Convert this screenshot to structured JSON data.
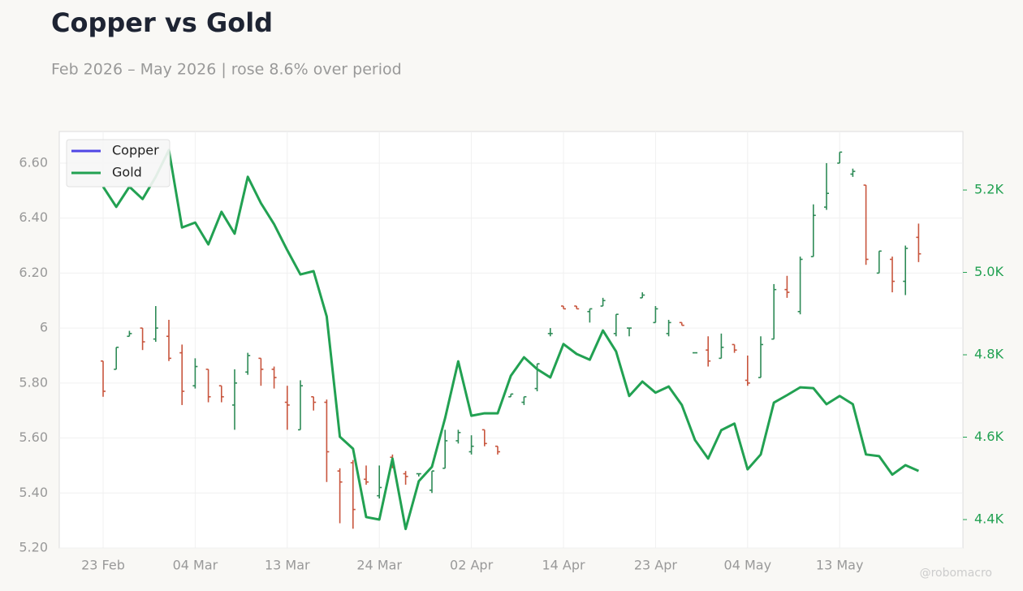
{
  "chart_data": {
    "type": "ohlc",
    "title": "Copper vs Gold",
    "subtitle": "Feb 2026 – May 2026 | rose 8.6% over period",
    "watermark": "@robomacro",
    "categories": [
      "23 Feb",
      null,
      null,
      null,
      null,
      null,
      null,
      "04 Mar",
      null,
      null,
      null,
      null,
      null,
      null,
      "13 Mar",
      null,
      null,
      null,
      null,
      null,
      null,
      "24 Mar",
      null,
      null,
      null,
      null,
      null,
      null,
      "02 Apr",
      null,
      null,
      null,
      null,
      null,
      null,
      "14 Apr",
      null,
      null,
      null,
      null,
      null,
      null,
      "23 Apr",
      null,
      null,
      null,
      null,
      null,
      null,
      "04 May",
      null,
      null,
      null,
      null,
      null,
      null,
      "13 May",
      null,
      null,
      null,
      null,
      null,
      null
    ],
    "ylim": [
      5.2,
      6.715
    ],
    "yticks": [
      {
        "value": 5.2,
        "label": "5.20"
      },
      {
        "value": 5.4,
        "label": "5.40"
      },
      {
        "value": 5.6,
        "label": "5.60"
      },
      {
        "value": 5.8,
        "label": "5.80"
      },
      6,
      {
        "value": 6.2,
        "label": "6.20"
      },
      {
        "value": 6.4,
        "label": "6.40"
      },
      {
        "value": 6.6,
        "label": "6.60"
      }
    ],
    "y2lim": [
      4331,
      5342
    ],
    "y2ticks": [
      {
        "value": 4400,
        "label": "4.4K"
      },
      {
        "value": 4600,
        "label": "4.6K"
      },
      {
        "value": 4800,
        "label": "4.8K"
      },
      {
        "value": 5000,
        "label": "5.0K"
      },
      {
        "value": 5200,
        "label": "5.2K"
      }
    ],
    "grid": true,
    "legend": "upper left",
    "series": [
      {
        "name": "Copper",
        "type": "ohlc",
        "color": "#4f46e5",
        "up_color": "#2e8b57",
        "down_color": "#c8553d",
        "open": [
          5.88,
          5.85,
          5.97,
          6.0,
          5.96,
          5.97,
          5.91,
          5.79,
          5.85,
          5.79,
          5.72,
          5.84,
          5.89,
          5.85,
          5.73,
          5.63,
          5.75,
          5.73,
          5.48,
          5.51,
          5.45,
          5.39,
          5.53,
          5.47,
          5.47,
          5.41,
          5.49,
          5.59,
          5.55,
          5.63,
          5.57,
          5.75,
          5.73,
          5.78,
          5.98,
          6.08,
          6.08,
          6.06,
          6.08,
          5.98,
          6.0,
          6.11,
          6.02,
          5.98,
          6.02,
          5.91,
          5.92,
          5.89,
          5.94,
          5.81,
          5.82,
          5.96,
          6.14,
          6.06,
          6.26,
          6.44,
          6.6,
          6.56,
          6.52,
          6.2,
          6.25,
          6.17,
          6.33
        ],
        "high": [
          5.88,
          5.93,
          5.99,
          6.0,
          6.08,
          6.03,
          5.94,
          5.89,
          5.85,
          5.79,
          5.85,
          5.91,
          5.89,
          5.86,
          5.79,
          5.81,
          5.75,
          5.74,
          5.49,
          5.52,
          5.5,
          5.5,
          5.54,
          5.48,
          5.47,
          5.48,
          5.63,
          5.63,
          5.61,
          5.63,
          5.57,
          5.76,
          5.75,
          5.87,
          6.0,
          6.08,
          6.08,
          6.07,
          6.11,
          6.05,
          6.0,
          6.13,
          6.08,
          6.03,
          6.02,
          5.91,
          5.97,
          5.98,
          5.94,
          5.9,
          5.97,
          6.16,
          6.19,
          6.26,
          6.45,
          6.6,
          6.64,
          6.58,
          6.52,
          6.28,
          6.26,
          6.3,
          6.38
        ],
        "low": [
          5.75,
          5.85,
          5.97,
          5.92,
          5.95,
          5.88,
          5.72,
          5.78,
          5.73,
          5.73,
          5.63,
          5.83,
          5.79,
          5.78,
          5.63,
          5.63,
          5.7,
          5.44,
          5.29,
          5.27,
          5.43,
          5.38,
          5.49,
          5.43,
          5.46,
          5.4,
          5.49,
          5.58,
          5.54,
          5.57,
          5.54,
          5.75,
          5.72,
          5.77,
          5.97,
          6.07,
          6.07,
          6.02,
          6.08,
          5.97,
          5.97,
          6.11,
          6.02,
          5.97,
          6.01,
          5.91,
          5.86,
          5.89,
          5.91,
          5.79,
          5.82,
          5.96,
          6.11,
          6.05,
          6.26,
          6.43,
          6.6,
          6.55,
          6.23,
          6.2,
          6.13,
          6.12,
          6.24
        ],
        "close": [
          5.77,
          5.93,
          5.98,
          5.95,
          6.0,
          5.89,
          5.77,
          5.86,
          5.75,
          5.75,
          5.8,
          5.9,
          5.85,
          5.82,
          5.72,
          5.79,
          5.73,
          5.55,
          5.44,
          5.34,
          5.44,
          5.42,
          5.5,
          5.46,
          5.47,
          5.48,
          5.59,
          5.62,
          5.57,
          5.58,
          5.55,
          5.76,
          5.75,
          5.87,
          5.98,
          6.07,
          6.07,
          6.07,
          6.1,
          6.05,
          6.0,
          6.12,
          6.07,
          6.02,
          6.01,
          5.91,
          5.88,
          5.93,
          5.92,
          5.8,
          5.94,
          6.14,
          6.13,
          6.25,
          6.41,
          6.49,
          6.64,
          6.57,
          6.25,
          6.28,
          6.17,
          6.29,
          6.27
        ]
      },
      {
        "name": "Gold",
        "type": "line",
        "color": "#22a152",
        "axis": "y2",
        "values": [
          5208,
          5159,
          5208,
          5178,
          5232,
          5297,
          5109,
          5121,
          5068,
          5147,
          5094,
          5232,
          5168,
          5117,
          5054,
          4995,
          5003,
          4893,
          4601,
          4572,
          4406,
          4400,
          4548,
          4377,
          4493,
          4528,
          4646,
          4784,
          4652,
          4658,
          4658,
          4749,
          4794,
          4765,
          4745,
          4826,
          4802,
          4788,
          4859,
          4808,
          4700,
          4735,
          4708,
          4723,
          4678,
          4593,
          4548,
          4617,
          4633,
          4522,
          4558,
          4684,
          4702,
          4721,
          4719,
          4680,
          4700,
          4680,
          4558,
          4554,
          4509,
          4532,
          4518
        ]
      }
    ]
  }
}
